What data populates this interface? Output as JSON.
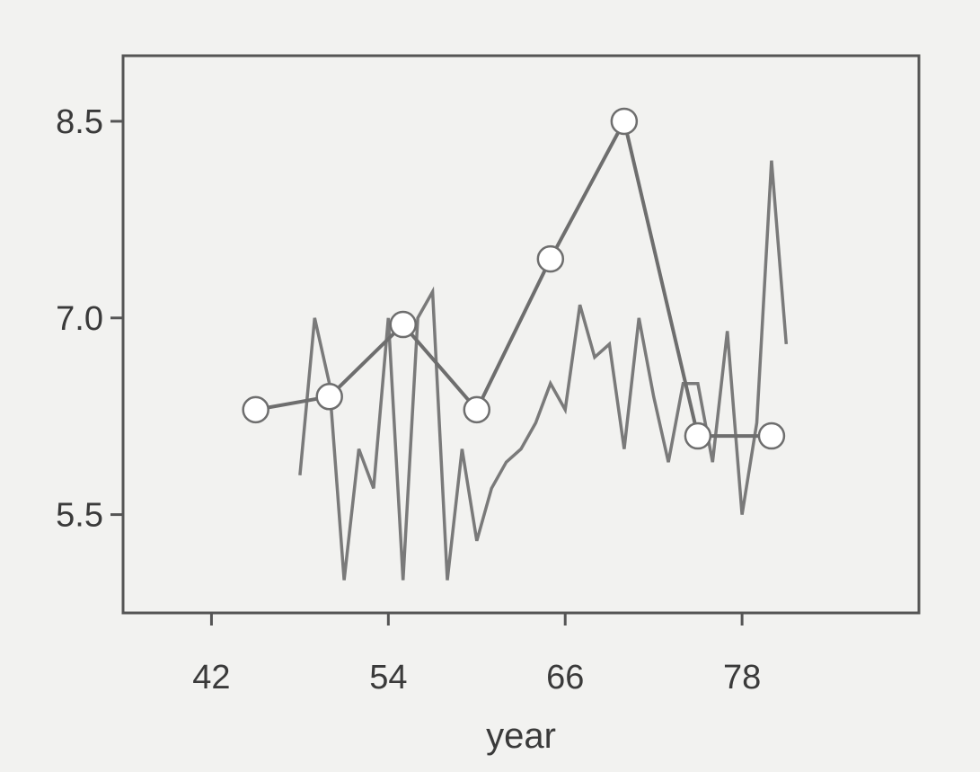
{
  "chart_data": {
    "type": "line",
    "title": "",
    "xlabel": "year",
    "ylabel": "",
    "xlim": [
      36,
      90
    ],
    "ylim": [
      4.75,
      9.0
    ],
    "x_ticks": [
      {
        "value": 42,
        "label": "42"
      },
      {
        "value": 54,
        "label": "54"
      },
      {
        "value": 66,
        "label": "66"
      },
      {
        "value": 78,
        "label": "78"
      }
    ],
    "y_ticks": [
      {
        "value": 5.5,
        "label": "5.5"
      },
      {
        "value": 7.0,
        "label": "7.0"
      },
      {
        "value": 8.5,
        "label": "8.5"
      }
    ],
    "grid": false,
    "legend": null,
    "series": [
      {
        "style": "line",
        "color": "#7a7a7a",
        "x": [
          48,
          49,
          50,
          51,
          52,
          53,
          54,
          55,
          56,
          57,
          58,
          59,
          60,
          61,
          62,
          63,
          64,
          65,
          66,
          67,
          68,
          69,
          70,
          71,
          72,
          73,
          74,
          75,
          76,
          77,
          78,
          79,
          80,
          81
        ],
        "y": [
          5.8,
          7.0,
          6.5,
          5.0,
          6.0,
          5.7,
          7.0,
          5.0,
          7.0,
          7.2,
          5.0,
          6.0,
          5.3,
          5.7,
          5.9,
          6.0,
          6.2,
          6.5,
          6.3,
          7.1,
          6.7,
          6.8,
          6.0,
          7.0,
          6.4,
          5.9,
          6.5,
          6.5,
          5.9,
          6.9,
          5.5,
          6.2,
          8.2,
          6.8
        ]
      },
      {
        "style": "line-marker",
        "color": "#6e6e6e",
        "x": [
          45,
          50,
          55,
          60,
          65,
          70,
          75,
          80
        ],
        "y": [
          6.3,
          6.4,
          6.95,
          6.3,
          7.45,
          8.5,
          6.1,
          6.1
        ]
      }
    ]
  }
}
